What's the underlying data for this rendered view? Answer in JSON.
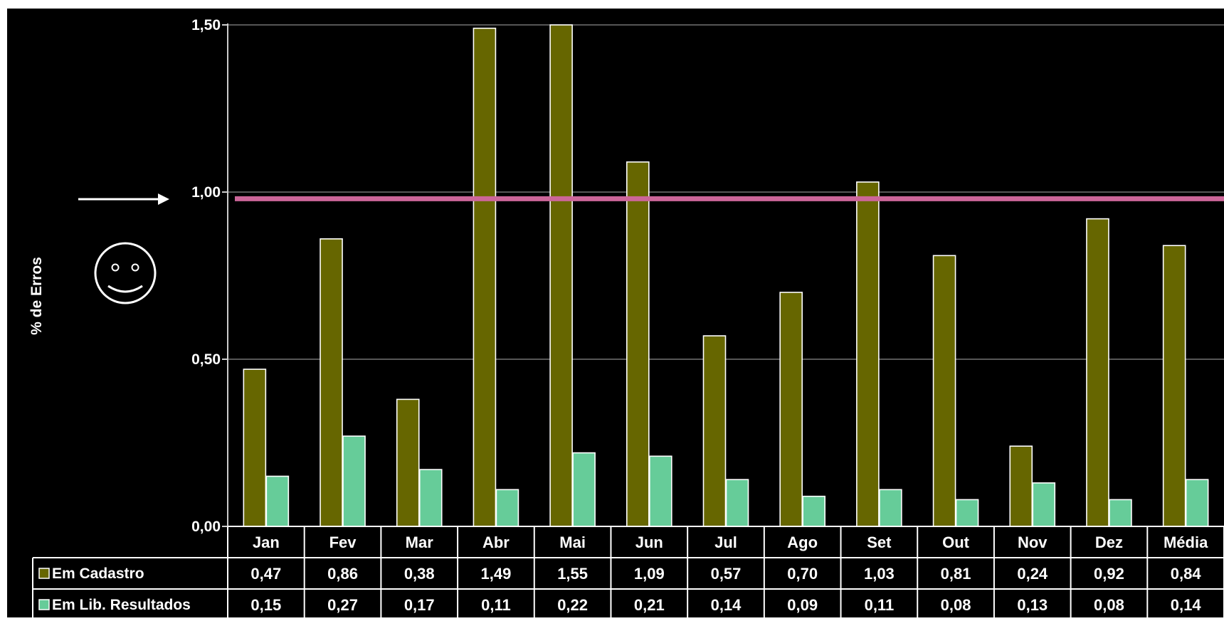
{
  "chart_data": {
    "type": "bar",
    "ylabel": "% de Erros",
    "ylim": [
      0,
      1.5
    ],
    "yticks": [
      "0,00",
      "0,50",
      "1,00",
      "1,50"
    ],
    "grid": true,
    "categories": [
      "Jan",
      "Fev",
      "Mar",
      "Abr",
      "Mai",
      "Jun",
      "Jul",
      "Ago",
      "Set",
      "Out",
      "Nov",
      "Dez",
      "Média"
    ],
    "series": [
      {
        "name": "Em Cadastro",
        "color": "#666600",
        "values": [
          0.47,
          0.86,
          0.38,
          1.49,
          1.55,
          1.09,
          0.57,
          0.7,
          1.03,
          0.81,
          0.24,
          0.92,
          0.84
        ],
        "labels": [
          "0,47",
          "0,86",
          "0,38",
          "1,49",
          "1,55",
          "1,09",
          "0,57",
          "0,70",
          "1,03",
          "0,81",
          "0,24",
          "0,92",
          "0,84"
        ]
      },
      {
        "name": "Em Lib. Resultados",
        "color": "#66CC99",
        "values": [
          0.15,
          0.27,
          0.17,
          0.11,
          0.22,
          0.21,
          0.14,
          0.09,
          0.11,
          0.08,
          0.13,
          0.08,
          0.14
        ],
        "labels": [
          "0,15",
          "0,27",
          "0,17",
          "0,11",
          "0,22",
          "0,21",
          "0,14",
          "0,09",
          "0,11",
          "0,08",
          "0,13",
          "0,08",
          "0,14"
        ]
      }
    ],
    "target_line": {
      "value": 0.98,
      "color": "#CC6699"
    },
    "legend": "data-table",
    "annotations": [
      "arrow-pointing-to-1,00",
      "smiley-face-icon"
    ]
  }
}
